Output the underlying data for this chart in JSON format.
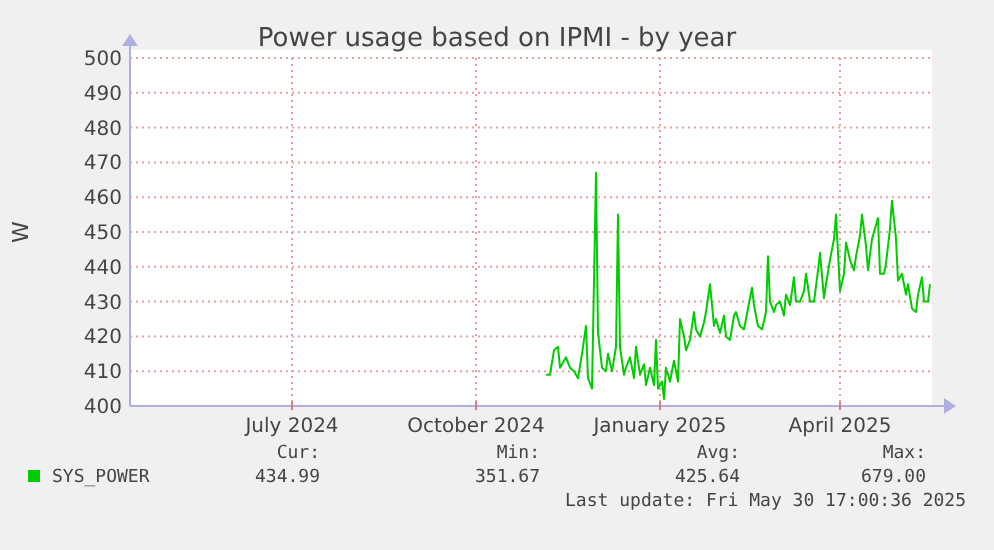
{
  "chart_data": {
    "type": "line",
    "title": "Power usage based on IPMI - by year",
    "ylabel": "W",
    "xlim": [
      "2024-04-26",
      "2025-06-01"
    ],
    "xticks": [
      {
        "value": "2024-07-16",
        "label": "July 2024"
      },
      {
        "value": "2024-10-16",
        "label": "October 2024"
      },
      {
        "value": "2025-01-16",
        "label": "January 2025"
      },
      {
        "value": "2025-04-16",
        "label": "April 2025"
      }
    ],
    "ylim": [
      400,
      500
    ],
    "yticks": [
      400,
      410,
      420,
      430,
      440,
      450,
      460,
      470,
      480,
      490,
      500
    ],
    "grid": true,
    "legend": "bottom",
    "marker": "none",
    "line_style": "solid",
    "x": [
      "2024-11-20",
      "2024-11-22",
      "2024-11-24",
      "2024-11-26",
      "2024-11-27",
      "2024-11-29",
      "2024-11-30",
      "2024-12-02",
      "2024-12-04",
      "2024-12-06",
      "2024-12-08",
      "2024-12-10",
      "2024-12-11",
      "2024-12-13",
      "2024-12-15",
      "2024-12-16",
      "2024-12-18",
      "2024-12-20",
      "2024-12-21",
      "2024-12-23",
      "2024-12-25",
      "2024-12-26",
      "2024-12-27",
      "2024-12-29",
      "2024-12-30",
      "2025-01-01",
      "2025-01-03",
      "2025-01-04",
      "2025-01-06",
      "2025-01-08",
      "2025-01-09",
      "2025-01-11",
      "2025-01-13",
      "2025-01-14",
      "2025-01-15",
      "2025-01-17",
      "2025-01-18",
      "2025-01-19",
      "2025-01-21",
      "2025-01-23",
      "2025-01-25",
      "2025-01-26",
      "2025-01-28",
      "2025-01-29",
      "2025-01-31",
      "2025-02-02",
      "2025-02-03",
      "2025-02-05",
      "2025-02-07",
      "2025-02-08",
      "2025-02-10",
      "2025-02-12",
      "2025-02-13",
      "2025-02-15",
      "2025-02-17",
      "2025-02-18",
      "2025-02-20",
      "2025-02-22",
      "2025-02-23",
      "2025-02-25",
      "2025-02-27",
      "2025-02-28",
      "2025-03-03",
      "2025-03-04",
      "2025-03-06",
      "2025-03-08",
      "2025-03-10",
      "2025-03-11",
      "2025-03-12",
      "2025-03-14",
      "2025-03-15",
      "2025-03-17",
      "2025-03-19",
      "2025-03-20",
      "2025-03-22",
      "2025-03-24",
      "2025-03-25",
      "2025-03-27",
      "2025-03-29",
      "2025-03-30",
      "2025-04-01",
      "2025-04-03",
      "2025-04-05",
      "2025-04-06",
      "2025-04-08",
      "2025-04-09",
      "2025-04-11",
      "2025-04-13",
      "2025-04-14",
      "2025-04-16",
      "2025-04-18",
      "2025-04-19",
      "2025-04-21",
      "2025-04-23",
      "2025-04-24",
      "2025-04-26",
      "2025-04-27",
      "2025-04-29",
      "2025-04-30",
      "2025-05-02",
      "2025-05-03",
      "2025-05-05",
      "2025-05-06",
      "2025-05-08",
      "2025-05-09",
      "2025-05-11",
      "2025-05-12",
      "2025-05-14",
      "2025-05-15",
      "2025-05-17",
      "2025-05-19",
      "2025-05-20",
      "2025-05-22",
      "2025-05-24",
      "2025-05-25",
      "2025-05-27",
      "2025-05-28",
      "2025-05-30",
      "2025-05-31"
    ],
    "series": [
      {
        "name": "SYS_POWER",
        "color": "#00cc00",
        "values": [
          409,
          409,
          416,
          417,
          411,
          413,
          414,
          411,
          410,
          408,
          415,
          423,
          408,
          405,
          467,
          421,
          411,
          410,
          415,
          410,
          417,
          455,
          417,
          409,
          411,
          414,
          408,
          417,
          409,
          412,
          406,
          411,
          406,
          419,
          405,
          407,
          402,
          411,
          407,
          413,
          407,
          425,
          420,
          416,
          419,
          427,
          422,
          420,
          424,
          427,
          435,
          423,
          425,
          421,
          426,
          420,
          419,
          426,
          427,
          423,
          422,
          425,
          434,
          429,
          423,
          422,
          427,
          443,
          430,
          427,
          429,
          430,
          426,
          432,
          429,
          437,
          430,
          430,
          433,
          438,
          430,
          430,
          439,
          444,
          431,
          435,
          442,
          448,
          455,
          433,
          438,
          447,
          442,
          439,
          443,
          449,
          455,
          446,
          439,
          448,
          450,
          454,
          438,
          438,
          441,
          451,
          459,
          448,
          436,
          438,
          432,
          435,
          428,
          427,
          432,
          437,
          430,
          430,
          435
        ]
      }
    ],
    "annotations": [
      "Cur:",
      "Min:",
      "Avg:",
      "Max:",
      "434.99",
      "351.67",
      "425.64",
      "679.00",
      "Last update: Fri May 30 17:00:36 2025"
    ]
  }
}
